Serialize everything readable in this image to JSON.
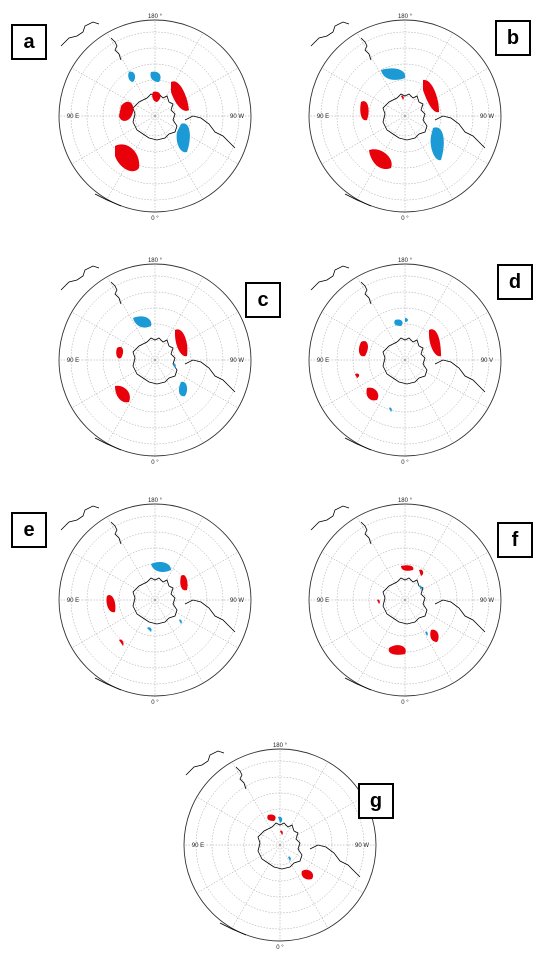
{
  "colors": {
    "positive": "#e8000b",
    "negative": "#1c9ad6",
    "coast": "#000000",
    "grid": "#9a9a9a"
  },
  "axis_labels": {
    "top": "180 °",
    "bottom": "0 °",
    "left": "90 E",
    "right": "90 W",
    "right_alt": "90 V"
  },
  "panels": [
    {
      "letter": "a",
      "right_label": "90 W"
    },
    {
      "letter": "b",
      "right_label": "90 W"
    },
    {
      "letter": "c",
      "right_label": "90 W"
    },
    {
      "letter": "d",
      "right_label": "90 V"
    },
    {
      "letter": "e",
      "right_label": "90 W"
    },
    {
      "letter": "f",
      "right_label": "90 W"
    },
    {
      "letter": "g",
      "right_label": "90 W"
    }
  ]
}
